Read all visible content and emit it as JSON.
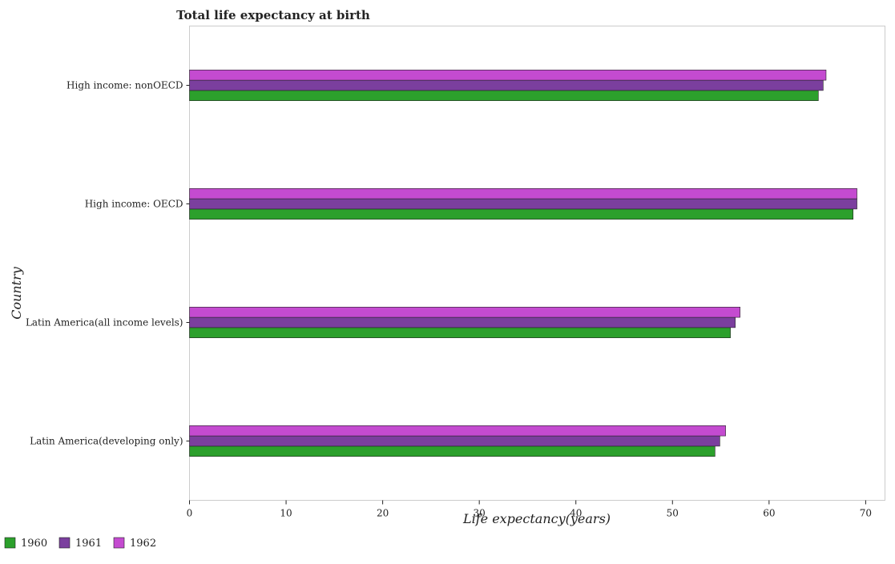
{
  "chart_data": {
    "type": "bar",
    "orientation": "horizontal",
    "title": "Total life expectancy at birth",
    "xlabel": "Life expectancy(years)",
    "ylabel": "Country",
    "xlim": [
      0,
      72
    ],
    "xticks": [
      0,
      10,
      20,
      30,
      40,
      50,
      60,
      70
    ],
    "grid": false,
    "legend_position": "bottom-left",
    "categories": [
      "High income: nonOECD",
      "High income: OECD",
      "Latin America(all income levels)",
      "Latin America(developing only)"
    ],
    "series": [
      {
        "name": "1960",
        "color": "#2ca02c",
        "values": [
          65.1,
          68.7,
          56.0,
          54.4
        ]
      },
      {
        "name": "1961",
        "color": "#7b3f9e",
        "values": [
          65.6,
          69.1,
          56.5,
          54.9
        ]
      },
      {
        "name": "1962",
        "color": "#c44bd0",
        "values": [
          65.9,
          69.1,
          57.0,
          55.5
        ]
      }
    ]
  }
}
